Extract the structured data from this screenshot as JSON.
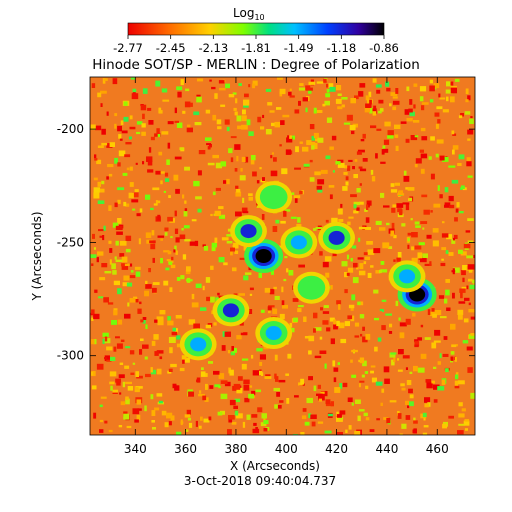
{
  "chart_data": {
    "type": "heatmap",
    "title": "Hinode SOT/SP - MERLIN : Degree of Polarization",
    "timestamp": "3-Oct-2018 09:40:04.737",
    "xlabel": "X (Arcseconds)",
    "ylabel": "Y (Arcseconds)",
    "xlim": [
      322,
      475
    ],
    "ylim": [
      -335,
      -177
    ],
    "x_ticks": [
      340,
      360,
      380,
      400,
      420,
      440,
      460
    ],
    "y_ticks": [
      -200,
      -250,
      -300
    ],
    "colorbar": {
      "label": "Log",
      "label_sub": "10",
      "ticks": [
        "-2.77",
        "-2.45",
        "-2.13",
        "-1.81",
        "-1.49",
        "-1.18",
        "-0.86"
      ],
      "range": [
        -2.77,
        -0.86
      ]
    },
    "background_level": -2.45,
    "features": [
      {
        "kind": "spot",
        "x": 391,
        "y": -256,
        "value": -0.86
      },
      {
        "kind": "spot",
        "x": 452,
        "y": -273,
        "value": -0.86
      },
      {
        "kind": "patch",
        "x": 385,
        "y": -245,
        "value": -1.18
      },
      {
        "kind": "patch",
        "x": 405,
        "y": -250,
        "value": -1.49
      },
      {
        "kind": "patch",
        "x": 420,
        "y": -248,
        "value": -1.18
      },
      {
        "kind": "patch",
        "x": 378,
        "y": -280,
        "value": -1.18
      },
      {
        "kind": "patch",
        "x": 395,
        "y": -290,
        "value": -1.49
      },
      {
        "kind": "patch",
        "x": 410,
        "y": -270,
        "value": -1.81
      },
      {
        "kind": "patch",
        "x": 395,
        "y": -230,
        "value": -1.81
      },
      {
        "kind": "patch",
        "x": 365,
        "y": -295,
        "value": -1.49
      },
      {
        "kind": "patch",
        "x": 448,
        "y": -265,
        "value": -1.49
      }
    ]
  }
}
